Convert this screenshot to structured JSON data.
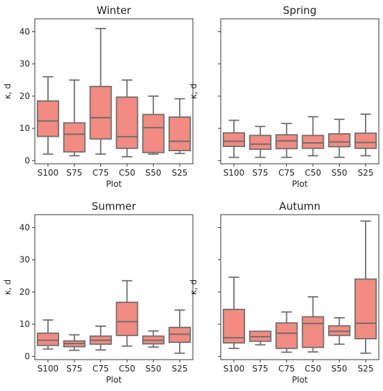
{
  "chart_data": [
    {
      "type": "box",
      "title": "Winter",
      "xlabel": "Plot",
      "ylabel": "κ, d",
      "ylim": [
        -1,
        44
      ],
      "yticks": [
        0,
        10,
        20,
        30,
        40
      ],
      "show_ytick_labels": true,
      "categories": [
        "S100",
        "S75",
        "C75",
        "C50",
        "S50",
        "S25"
      ],
      "boxes": [
        {
          "low": 2,
          "q1": 7.5,
          "median": 12.3,
          "q3": 18.5,
          "high": 26
        },
        {
          "low": 1.5,
          "q1": 2.7,
          "median": 8.2,
          "q3": 11.7,
          "high": 25
        },
        {
          "low": 2,
          "q1": 6.7,
          "median": 13.3,
          "q3": 23,
          "high": 41
        },
        {
          "low": 1.2,
          "q1": 3.8,
          "median": 7.4,
          "q3": 19.7,
          "high": 25
        },
        {
          "low": 2,
          "q1": 2.5,
          "median": 10.2,
          "q3": 14.3,
          "high": 20
        },
        {
          "low": 2.2,
          "q1": 3.1,
          "median": 6,
          "q3": 13.5,
          "high": 19.2
        }
      ],
      "box_color": "#f28b82",
      "line_color": "#6e6e6e",
      "grid": false
    },
    {
      "type": "box",
      "title": "Spring",
      "xlabel": "Plot",
      "ylabel": "κ, d",
      "ylim": [
        -1,
        44
      ],
      "yticks": [
        0,
        10,
        20,
        30,
        40
      ],
      "show_ytick_labels": false,
      "categories": [
        "S100",
        "S75",
        "C75",
        "C50",
        "S50",
        "S25"
      ],
      "boxes": [
        {
          "low": 1,
          "q1": 4.4,
          "median": 6,
          "q3": 8.6,
          "high": 12.5
        },
        {
          "low": 1,
          "q1": 3.5,
          "median": 5.1,
          "q3": 7.8,
          "high": 10.6
        },
        {
          "low": 1,
          "q1": 3.7,
          "median": 6.1,
          "q3": 8,
          "high": 11.5
        },
        {
          "low": 1.5,
          "q1": 3.8,
          "median": 5.5,
          "q3": 7.8,
          "high": 13.6
        },
        {
          "low": 1,
          "q1": 4.3,
          "median": 5.8,
          "q3": 8.3,
          "high": 12.8
        },
        {
          "low": 1.5,
          "q1": 3.8,
          "median": 5.6,
          "q3": 8.5,
          "high": 14.4
        }
      ],
      "box_color": "#f28b82",
      "line_color": "#6e6e6e",
      "grid": false
    },
    {
      "type": "box",
      "title": "Summer",
      "xlabel": "Plot",
      "ylabel": "κ, d",
      "ylim": [
        -1,
        44
      ],
      "yticks": [
        0,
        10,
        20,
        30,
        40
      ],
      "show_ytick_labels": true,
      "categories": [
        "S100",
        "S75",
        "C75",
        "C50",
        "S50",
        "S25"
      ],
      "boxes": [
        {
          "low": 2.3,
          "q1": 3.4,
          "median": 5,
          "q3": 7.2,
          "high": 11.3
        },
        {
          "low": 1.9,
          "q1": 3,
          "median": 4,
          "q3": 4.8,
          "high": 6.7
        },
        {
          "low": 2,
          "q1": 3.8,
          "median": 5,
          "q3": 6.3,
          "high": 9.4
        },
        {
          "low": 3.2,
          "q1": 6.5,
          "median": 10.8,
          "q3": 16.8,
          "high": 23.5
        },
        {
          "low": 2.9,
          "q1": 3.9,
          "median": 5,
          "q3": 6.3,
          "high": 7.9
        },
        {
          "low": 1,
          "q1": 4.4,
          "median": 6.9,
          "q3": 9,
          "high": 14.4
        }
      ],
      "box_color": "#f28b82",
      "line_color": "#6e6e6e",
      "grid": false
    },
    {
      "type": "box",
      "title": "Autumn",
      "xlabel": "Plot",
      "ylabel": "κ, d",
      "ylim": [
        -1,
        44
      ],
      "yticks": [
        0,
        10,
        20,
        30,
        40
      ],
      "show_ytick_labels": false,
      "categories": [
        "S100",
        "S75",
        "C75",
        "C50",
        "S50",
        "S25"
      ],
      "boxes": [
        {
          "low": 2.5,
          "q1": 4.2,
          "median": 5.8,
          "q3": 14.6,
          "high": 24.6
        },
        {
          "low": 3.6,
          "q1": 4.7,
          "median": 6.1,
          "q3": 7.8,
          "high": 7.8
        },
        {
          "low": 1.3,
          "q1": 2.5,
          "median": 7.2,
          "q3": 10.4,
          "high": 13.8
        },
        {
          "low": 1.4,
          "q1": 2.8,
          "median": 10.2,
          "q3": 12.3,
          "high": 18.5
        },
        {
          "low": 3.8,
          "q1": 6.5,
          "median": 7.8,
          "q3": 9.5,
          "high": 12
        },
        {
          "low": 1,
          "q1": 5.5,
          "median": 10.3,
          "q3": 24,
          "high": 42
        }
      ],
      "box_color": "#f28b82",
      "line_color": "#6e6e6e",
      "grid": false
    }
  ]
}
